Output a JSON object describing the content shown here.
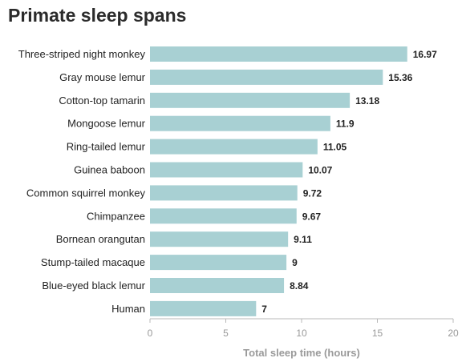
{
  "chart_data": {
    "type": "bar",
    "orientation": "horizontal",
    "title": "Primate sleep spans",
    "xlabel": "Total sleep time (hours)",
    "ylabel": "",
    "xlim": [
      0,
      20
    ],
    "ticks": [
      0,
      5,
      10,
      15,
      20
    ],
    "grid": false,
    "bar_color": "#a8d0d3",
    "categories": [
      "Three-striped night monkey",
      "Gray mouse lemur",
      "Cotton-top tamarin",
      "Mongoose lemur",
      "Ring-tailed lemur",
      "Guinea baboon",
      "Common squirrel monkey",
      "Chimpanzee",
      "Bornean orangutan",
      "Stump-tailed macaque",
      "Blue-eyed black lemur",
      "Human"
    ],
    "values": [
      16.97,
      15.36,
      13.18,
      11.9,
      11.05,
      10.07,
      9.72,
      9.67,
      9.11,
      9,
      8.84,
      7
    ],
    "value_labels": [
      "16.97",
      "15.36",
      "13.18",
      "11.9",
      "11.05",
      "10.07",
      "9.72",
      "9.67",
      "9.11",
      "9",
      "8.84",
      "7"
    ]
  }
}
